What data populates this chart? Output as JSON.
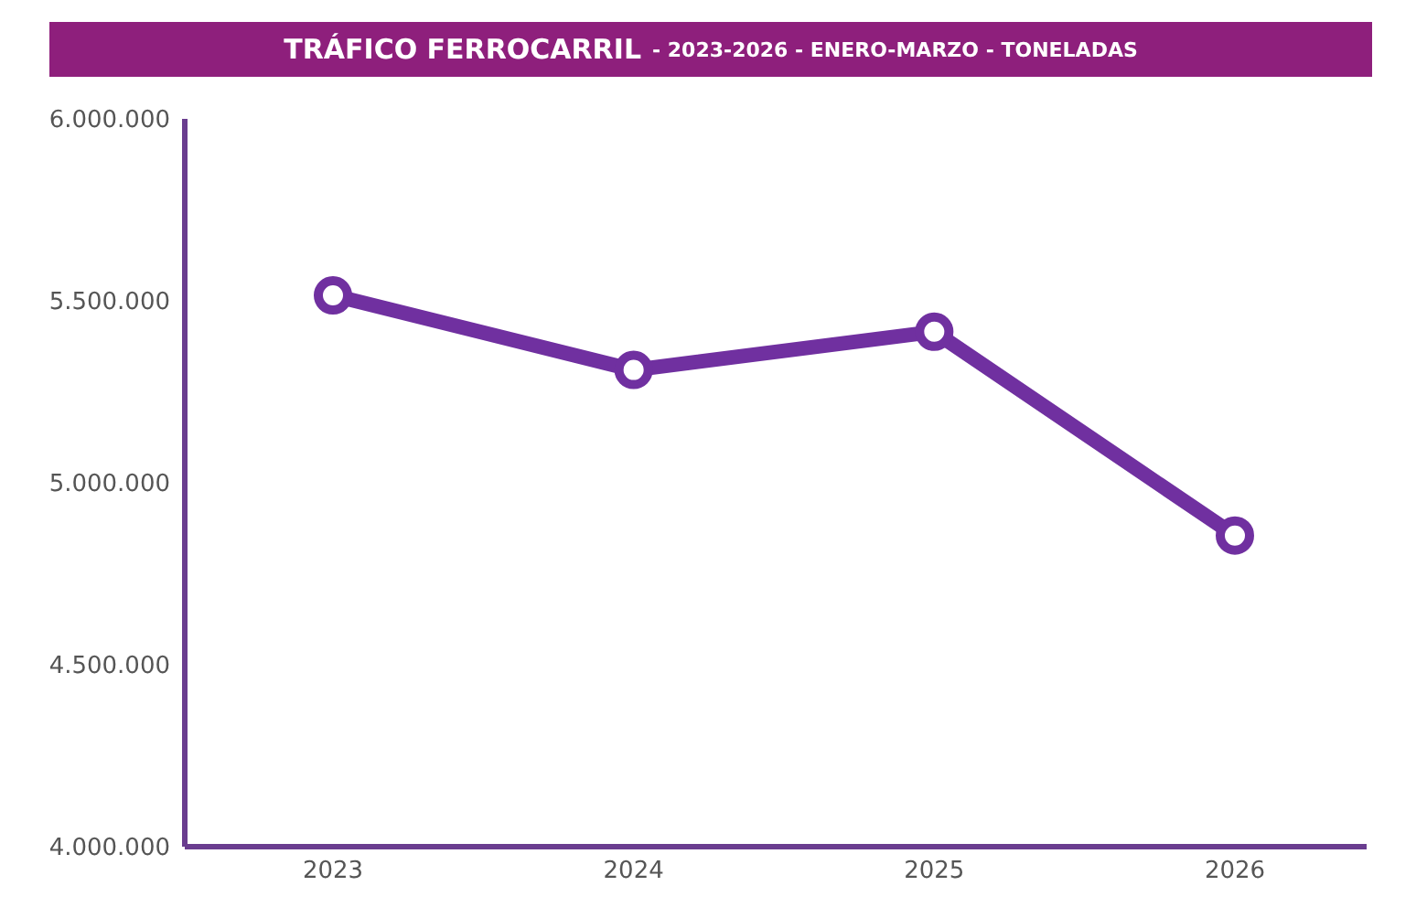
{
  "chart_data": {
    "type": "line",
    "title": "TRÁFICO FERROCARRIL",
    "subtitle": "- 2023-2026 - ENERO-MARZO - TONELADAS",
    "categories": [
      "2023",
      "2024",
      "2025",
      "2026"
    ],
    "series": [
      {
        "color": "#7030a0",
        "values": [
          5515000,
          5310000,
          5415000,
          4855000
        ]
      }
    ],
    "ylim": [
      4000000,
      6000000
    ],
    "yticks": [
      {
        "value": 4000000,
        "label": "4.000.000"
      },
      {
        "value": 4500000,
        "label": "4.500.000"
      },
      {
        "value": 5000000,
        "label": "5.000.000"
      },
      {
        "value": 5500000,
        "label": "5.500.000"
      },
      {
        "value": 6000000,
        "label": "6.000.000"
      }
    ],
    "grid": false,
    "legend": false,
    "marker": "circle",
    "line_style": "solid"
  }
}
